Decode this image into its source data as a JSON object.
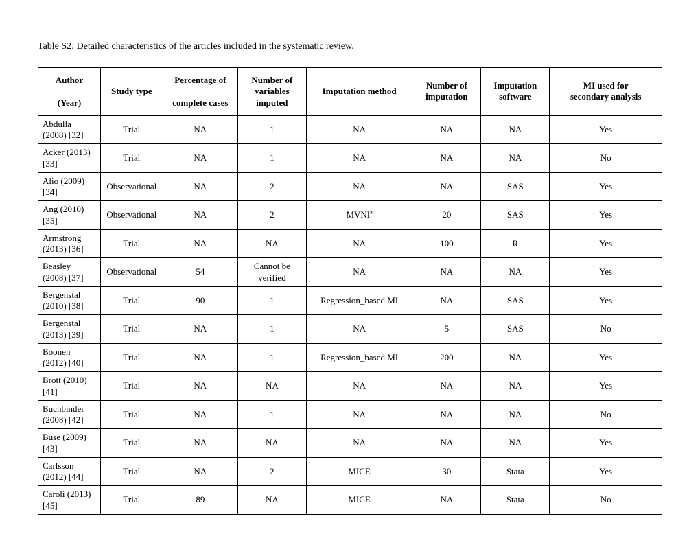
{
  "caption": "Table S2: Detailed characteristics of the articles included in the systematic review.",
  "table": {
    "type": "table",
    "text_color": "#000000",
    "border_color": "#000000",
    "background_color": "#ffffff",
    "header_fontsize": 13,
    "cell_fontsize": 13,
    "font_family": "Times New Roman",
    "columns": [
      {
        "label_line1": "Author",
        "label_line2": "(Year)",
        "width_pct": 10.5,
        "header_align": "center"
      },
      {
        "label_line1": "Study type",
        "label_line2": "",
        "width_pct": 10,
        "header_align": "center"
      },
      {
        "label_line1": "Percentage of",
        "label_line2": "complete cases",
        "width_pct": 12,
        "header_align": "center"
      },
      {
        "label_line1": "Number of",
        "label_line2": "variables imputed",
        "width_pct": 11,
        "header_align": "center"
      },
      {
        "label_line1": "Imputation method",
        "label_line2": "",
        "width_pct": 17,
        "header_align": "center"
      },
      {
        "label_line1": "Number of",
        "label_line2": "imputation",
        "width_pct": 11,
        "header_align": "center"
      },
      {
        "label_line1": "Imputation",
        "label_line2": "software",
        "width_pct": 11,
        "header_align": "center"
      },
      {
        "label_line1": "MI used for",
        "label_line2": "secondary analysis",
        "width_pct": 17.5,
        "header_align": "center"
      }
    ],
    "rows": [
      {
        "author": "Abdulla (2008) [32]",
        "study": "Trial",
        "pct": "NA",
        "nvars": "1",
        "method": "NA",
        "nimp": "NA",
        "software": "NA",
        "mi": "Yes"
      },
      {
        "author": "Acker (2013) [33]",
        "study": "Trial",
        "pct": "NA",
        "nvars": "1",
        "method": "NA",
        "nimp": "NA",
        "software": "NA",
        "mi": "No"
      },
      {
        "author": "Alio (2009) [34]",
        "study": "Observational",
        "pct": "NA",
        "nvars": "2",
        "method": "NA",
        "nimp": "NA",
        "software": "SAS",
        "mi": "Yes"
      },
      {
        "author": "Ang (2010) [35]",
        "study": "Observational",
        "pct": "NA",
        "nvars": "2",
        "method": "MVNIª",
        "nimp": "20",
        "software": "SAS",
        "mi": "Yes"
      },
      {
        "author": "Armstrong (2013) [36]",
        "study": "Trial",
        "pct": "NA",
        "nvars": "NA",
        "method": "NA",
        "nimp": "100",
        "software": "R",
        "mi": "Yes"
      },
      {
        "author": "Beasley (2008) [37]",
        "study": "Observational",
        "pct": "54",
        "nvars": "Cannot be verified",
        "method": "NA",
        "nimp": "NA",
        "software": "NA",
        "mi": "Yes"
      },
      {
        "author": "Bergenstal (2010) [38]",
        "study": "Trial",
        "pct": "90",
        "nvars": "1",
        "method": "Regression_based MI",
        "nimp": "NA",
        "software": "SAS",
        "mi": "Yes"
      },
      {
        "author": "Bergenstal (2013) [39]",
        "study": "Trial",
        "pct": "NA",
        "nvars": "1",
        "method": "NA",
        "nimp": "5",
        "software": "SAS",
        "mi": "No"
      },
      {
        "author": "Boonen (2012) [40]",
        "study": "Trial",
        "pct": "NA",
        "nvars": "1",
        "method": "Regression_based MI",
        "nimp": "200",
        "software": "NA",
        "mi": "Yes"
      },
      {
        "author": "Brott (2010) [41]",
        "study": "Trial",
        "pct": "NA",
        "nvars": "NA",
        "method": "NA",
        "nimp": "NA",
        "software": "NA",
        "mi": "Yes"
      },
      {
        "author": "Buchbinder (2008) [42]",
        "study": "Trial",
        "pct": "NA",
        "nvars": "1",
        "method": "NA",
        "nimp": "NA",
        "software": "NA",
        "mi": "No"
      },
      {
        "author": "Buse (2009) [43]",
        "study": "Trial",
        "pct": "NA",
        "nvars": "NA",
        "method": "NA",
        "nimp": "NA",
        "software": "NA",
        "mi": "Yes"
      },
      {
        "author": "Carlsson (2012) [44]",
        "study": "Trial",
        "pct": "NA",
        "nvars": "2",
        "method": "MICE",
        "nimp": "30",
        "software": "Stata",
        "mi": "Yes"
      },
      {
        "author": "Caroli (2013) [45]",
        "study": "Trial",
        "pct": "89",
        "nvars": "NA",
        "method": "MICE",
        "nimp": "NA",
        "software": "Stata",
        "mi": "No"
      }
    ]
  }
}
